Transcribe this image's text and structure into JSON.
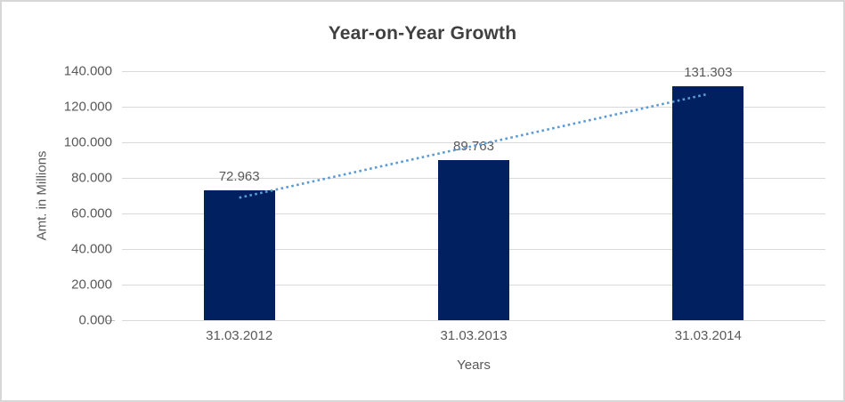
{
  "chart_data": {
    "type": "bar",
    "title": "Year-on-Year Growth",
    "categories": [
      "31.03.2012",
      "31.03.2013",
      "31.03.2014"
    ],
    "values": [
      72.963,
      89.763,
      131.303
    ],
    "data_labels": [
      "72.963",
      "89.763",
      "131.303"
    ],
    "xlabel": "Years",
    "ylabel": "Amt. in Millions",
    "ylim": [
      0,
      140
    ],
    "ytick_step": 20,
    "ytick_labels": [
      "0.000",
      "20.000",
      "40.000",
      "60.000",
      "80.000",
      "100.000",
      "120.000",
      "140.000"
    ],
    "grid": true,
    "legend": "none",
    "trendline": {
      "type": "linear",
      "style": "dotted",
      "color": "#5b9bd5"
    },
    "colors": {
      "bar": "#002060",
      "gridline": "#d9d9d9",
      "tick_label": "#595959",
      "title": "#404040",
      "frame_border": "#d7d7d7"
    }
  }
}
